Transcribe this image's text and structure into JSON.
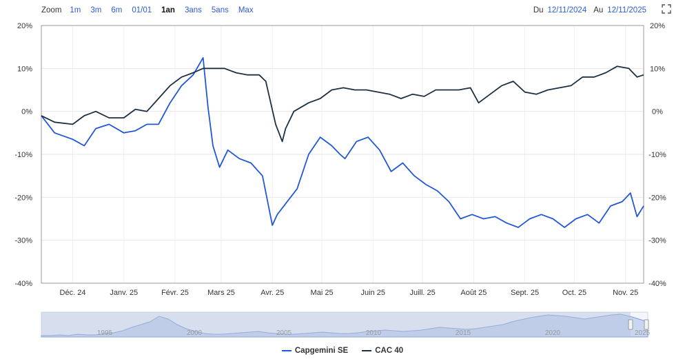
{
  "toolbar": {
    "zoom_label": "Zoom",
    "zoom_buttons": [
      "1m",
      "3m",
      "6m",
      "01/01",
      "1an",
      "3ans",
      "5ans",
      "Max"
    ],
    "active": "1an",
    "from_label": "Du",
    "from_value": "12/11/2024",
    "to_label": "Au",
    "to_value": "12/11/2025"
  },
  "colors": {
    "capgemini": "#2057d6",
    "cac40": "#1c2f40",
    "grid": "#e6e6e6",
    "navigator_fill": "#c8d6ef"
  },
  "chart_data": {
    "type": "line",
    "x_tick_labels": [
      "Déc. 24",
      "Janv. 25",
      "Févr. 25",
      "Mars 25",
      "Avr. 25",
      "Mai 25",
      "Juin 25",
      "Juill. 25",
      "Août 25",
      "Sept. 25",
      "Oct. 25",
      "Nov. 25"
    ],
    "y_tick_labels": [
      "20%",
      "10%",
      "0%",
      "-10%",
      "-20%",
      "-30%",
      "-40%"
    ],
    "ylim": [
      -40,
      20
    ],
    "x_range": [
      "2024-11-12",
      "2025-11-12"
    ],
    "grid": true,
    "legend_position": "bottom-center",
    "series": [
      {
        "name": "Capgemini SE",
        "x": [
          "2024-11-12",
          "2024-11-20",
          "2024-12-01",
          "2024-12-08",
          "2024-12-15",
          "2024-12-23",
          "2025-01-01",
          "2025-01-08",
          "2025-01-15",
          "2025-01-22",
          "2025-01-29",
          "2025-02-05",
          "2025-02-12",
          "2025-02-18",
          "2025-02-21",
          "2025-02-24",
          "2025-02-28",
          "2025-03-05",
          "2025-03-12",
          "2025-03-19",
          "2025-03-26",
          "2025-04-01",
          "2025-04-04",
          "2025-04-08",
          "2025-04-10",
          "2025-04-16",
          "2025-04-23",
          "2025-04-30",
          "2025-05-07",
          "2025-05-12",
          "2025-05-15",
          "2025-05-22",
          "2025-05-29",
          "2025-06-05",
          "2025-06-12",
          "2025-06-19",
          "2025-06-26",
          "2025-07-03",
          "2025-07-10",
          "2025-07-17",
          "2025-07-24",
          "2025-07-31",
          "2025-08-07",
          "2025-08-14",
          "2025-08-21",
          "2025-08-28",
          "2025-09-04",
          "2025-09-11",
          "2025-09-18",
          "2025-09-25",
          "2025-10-02",
          "2025-10-09",
          "2025-10-16",
          "2025-10-23",
          "2025-10-30",
          "2025-11-04",
          "2025-11-08",
          "2025-11-12"
        ],
        "values": [
          -1,
          -5,
          -6.5,
          -8,
          -4,
          -3,
          -5,
          -4.5,
          -3,
          -3,
          2,
          6,
          8.5,
          12.5,
          1,
          -8,
          -13,
          -9,
          -11,
          -12,
          -15,
          -26.5,
          -24,
          -22,
          -21,
          -18,
          -10,
          -6,
          -8,
          -10,
          -11,
          -7,
          -6,
          -9,
          -14,
          -12,
          -15,
          -17,
          -18.5,
          -21,
          -25,
          -24,
          -25,
          -24.5,
          -26,
          -27,
          -25,
          -24,
          -25,
          -27,
          -25,
          -24,
          -26,
          -22,
          -21,
          -19,
          -24.5,
          -22
        ]
      },
      {
        "name": "CAC 40",
        "x": [
          "2024-11-12",
          "2024-11-20",
          "2024-12-01",
          "2024-12-08",
          "2024-12-15",
          "2024-12-23",
          "2025-01-01",
          "2025-01-08",
          "2025-01-15",
          "2025-01-22",
          "2025-01-29",
          "2025-02-05",
          "2025-02-12",
          "2025-02-18",
          "2025-02-24",
          "2025-03-03",
          "2025-03-10",
          "2025-03-17",
          "2025-03-24",
          "2025-03-28",
          "2025-04-03",
          "2025-04-07",
          "2025-04-09",
          "2025-04-14",
          "2025-04-23",
          "2025-04-30",
          "2025-05-07",
          "2025-05-14",
          "2025-05-21",
          "2025-05-28",
          "2025-06-04",
          "2025-06-11",
          "2025-06-18",
          "2025-06-25",
          "2025-07-02",
          "2025-07-09",
          "2025-07-16",
          "2025-07-23",
          "2025-07-30",
          "2025-08-04",
          "2025-08-11",
          "2025-08-18",
          "2025-08-25",
          "2025-09-01",
          "2025-09-08",
          "2025-09-15",
          "2025-09-22",
          "2025-09-29",
          "2025-10-06",
          "2025-10-13",
          "2025-10-20",
          "2025-10-27",
          "2025-11-03",
          "2025-11-08",
          "2025-11-12"
        ],
        "values": [
          -1,
          -2.5,
          -3,
          -1,
          0,
          -1.5,
          -1.5,
          0.5,
          0,
          3,
          6,
          8,
          9,
          10,
          10,
          10,
          9,
          8.5,
          8.5,
          7,
          -3,
          -7,
          -4,
          0,
          2,
          3,
          5,
          5.5,
          5,
          5,
          4.5,
          4,
          3,
          4,
          3.5,
          5,
          5,
          5,
          5.5,
          2,
          4,
          6,
          7,
          4.5,
          4,
          5,
          5.5,
          6,
          8,
          8,
          9,
          10.5,
          10,
          8,
          8.5
        ]
      }
    ]
  },
  "navigator": {
    "year_labels": [
      "1995",
      "2000",
      "2005",
      "2010",
      "2015",
      "2020",
      "2025"
    ]
  },
  "legend": {
    "items": [
      "Capgemini SE",
      "CAC 40"
    ]
  }
}
